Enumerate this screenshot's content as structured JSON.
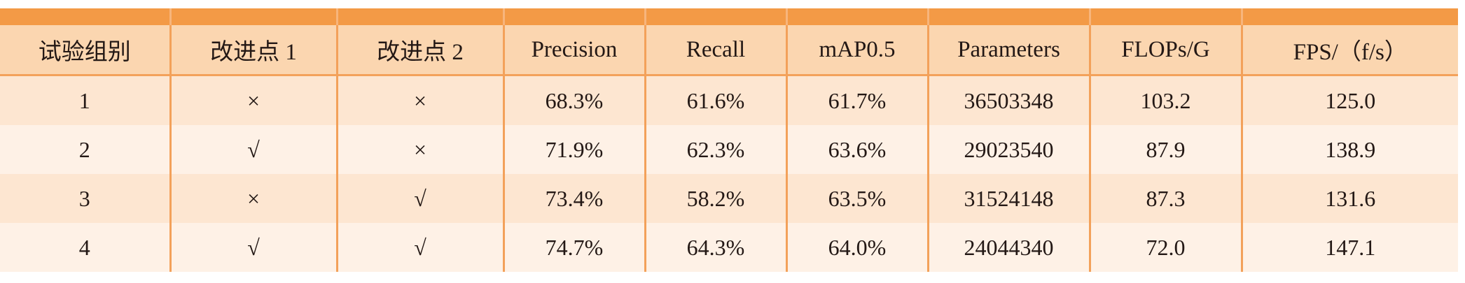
{
  "table": {
    "headers": [
      "试验组别",
      "改进点 1",
      "改进点 2",
      "Precision",
      "Recall",
      "mAP0.5",
      "Parameters",
      "FLOPs/G",
      "FPS/（f/s）"
    ],
    "rows": [
      [
        "1",
        "×",
        "×",
        "68.3%",
        "61.6%",
        "61.7%",
        "36503348",
        "103.2",
        "125.0"
      ],
      [
        "2",
        "√",
        "×",
        "71.9%",
        "62.3%",
        "63.6%",
        "29023540",
        "87.9",
        "138.9"
      ],
      [
        "3",
        "×",
        "√",
        "73.4%",
        "58.2%",
        "63.5%",
        "31524148",
        "87.3",
        "131.6"
      ],
      [
        "4",
        "√",
        "√",
        "74.7%",
        "64.3%",
        "64.0%",
        "24044340",
        "72.0",
        "147.1"
      ]
    ]
  },
  "colors": {
    "top_band": "#f39a46",
    "header_bg": "#fbd6b0",
    "row_odd": "#fde6d1",
    "row_even": "#fef1e6",
    "grid": "#f3a15a"
  }
}
